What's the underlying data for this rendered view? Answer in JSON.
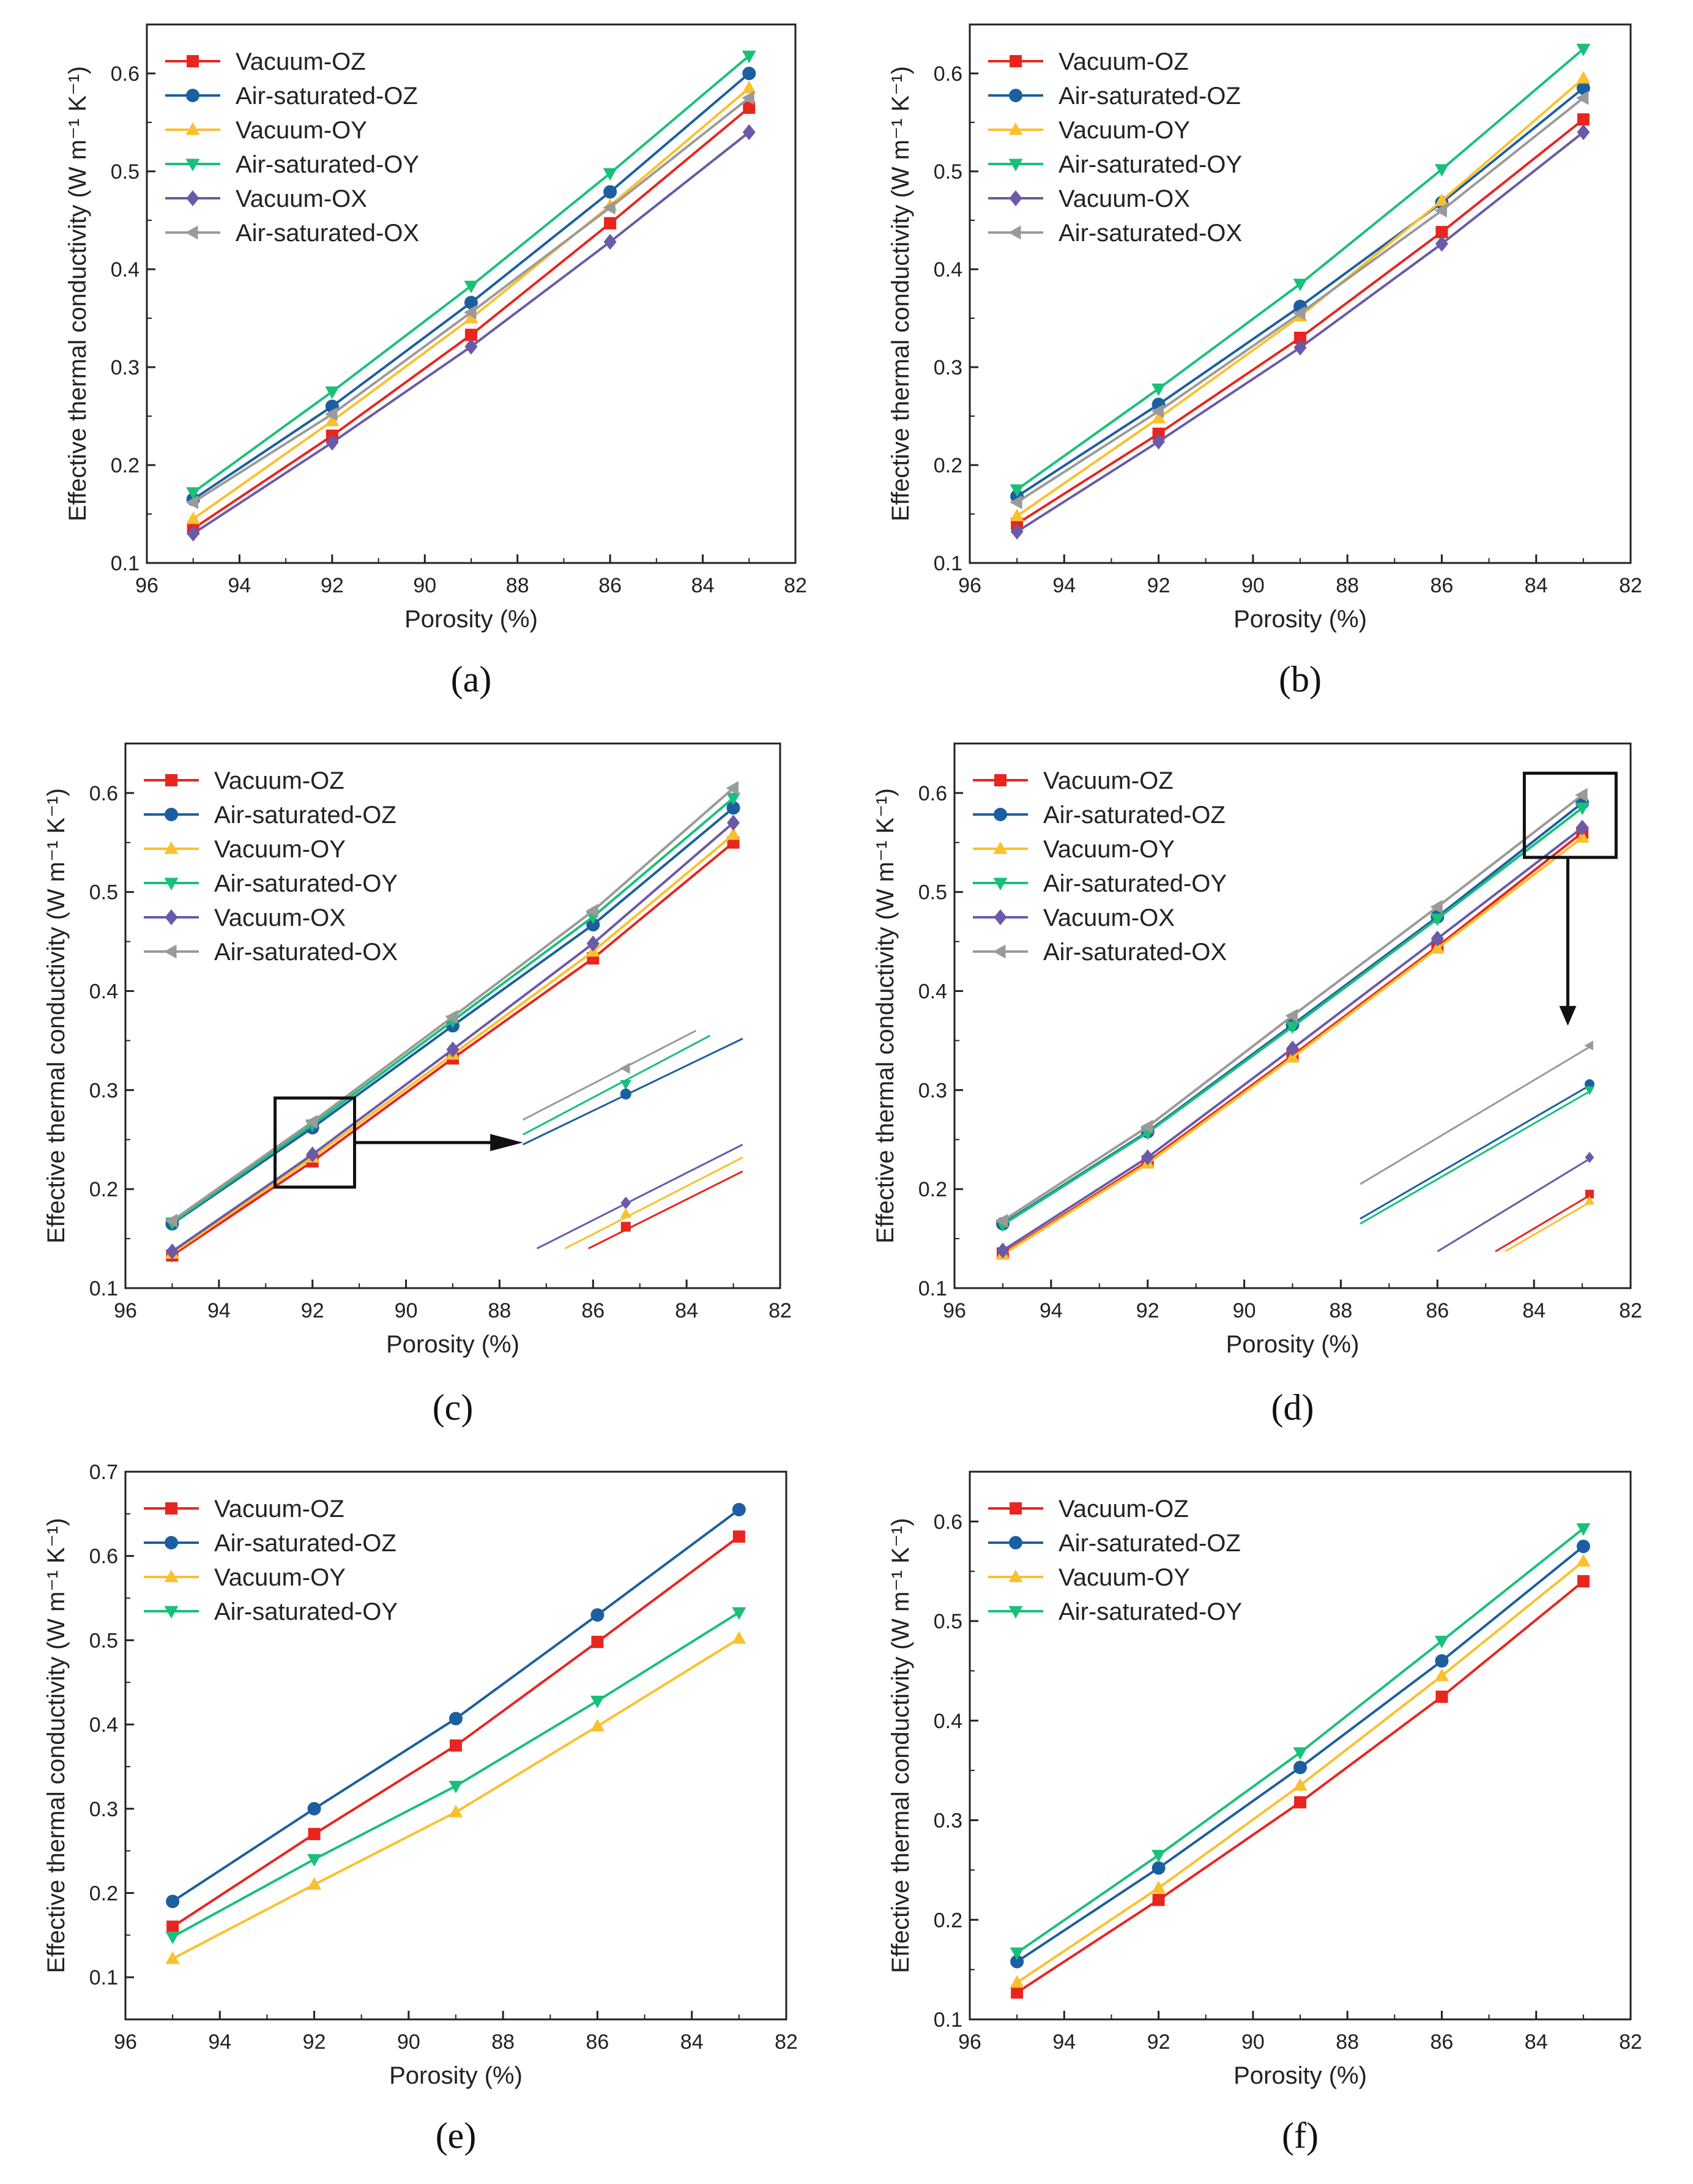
{
  "figure": {
    "colors": {
      "Vacuum-OZ": "#e8251f",
      "Air-saturated-OZ": "#1c5fa0",
      "Vacuum-OY": "#fbc02d",
      "Air-saturated-OY": "#19c07a",
      "Vacuum-OX": "#6a5aa8",
      "Air-saturated-OX": "#9a9a9a"
    },
    "markers": {
      "Vacuum-OZ": "square",
      "Air-saturated-OZ": "circle",
      "Vacuum-OY": "triangle-up",
      "Air-saturated-OY": "triangle-down",
      "Vacuum-OX": "diamond",
      "Air-saturated-OX": "triangle-left"
    }
  },
  "chart_data": [
    {
      "type": "line",
      "panel_label": "(a)",
      "xlabel": "Porosity (%)",
      "ylabel": "Effective thermal conductivity (W m⁻¹ K⁻¹)",
      "xlim": [
        96,
        82
      ],
      "ylim": [
        0.1,
        0.65
      ],
      "xticks": [
        96,
        94,
        92,
        90,
        88,
        86,
        84,
        82
      ],
      "xtick_labels": [
        "96",
        "94",
        "92",
        "90",
        "88",
        "86",
        "84",
        "82"
      ],
      "yticks": [
        0.1,
        0.2,
        0.3,
        0.4,
        0.5,
        0.6
      ],
      "ytick_labels": [
        "0.1",
        "0.2",
        "0.3",
        "0.4",
        "0.5",
        "0.6"
      ],
      "legend_position": "top-left",
      "x": [
        95,
        92,
        89,
        86,
        83
      ],
      "series": [
        {
          "name": "Vacuum-OZ",
          "values": [
            0.135,
            0.23,
            0.333,
            0.447,
            0.565
          ]
        },
        {
          "name": "Air-saturated-OZ",
          "values": [
            0.165,
            0.26,
            0.366,
            0.479,
            0.6
          ]
        },
        {
          "name": "Vacuum-OY",
          "values": [
            0.145,
            0.245,
            0.35,
            0.465,
            0.585
          ]
        },
        {
          "name": "Air-saturated-OY",
          "values": [
            0.172,
            0.275,
            0.383,
            0.498,
            0.618
          ]
        },
        {
          "name": "Vacuum-OX",
          "values": [
            0.13,
            0.223,
            0.321,
            0.428,
            0.54
          ]
        },
        {
          "name": "Air-saturated-OX",
          "values": [
            0.162,
            0.252,
            0.356,
            0.463,
            0.575
          ]
        }
      ]
    },
    {
      "type": "line",
      "panel_label": "(b)",
      "xlabel": "Porosity (%)",
      "ylabel": "Effective thermal conductivity (W m⁻¹ K⁻¹)",
      "xlim": [
        96,
        82
      ],
      "ylim": [
        0.1,
        0.65
      ],
      "xticks": [
        96,
        94,
        92,
        90,
        88,
        86,
        84,
        82
      ],
      "xtick_labels": [
        "96",
        "94",
        "92",
        "90",
        "88",
        "86",
        "84",
        "82"
      ],
      "yticks": [
        0.1,
        0.2,
        0.3,
        0.4,
        0.5,
        0.6
      ],
      "ytick_labels": [
        "0.1",
        "0.2",
        "0.3",
        "0.4",
        "0.5",
        "0.6"
      ],
      "legend_position": "top-left",
      "x": [
        95,
        92,
        89,
        86,
        83
      ],
      "series": [
        {
          "name": "Vacuum-OZ",
          "values": [
            0.14,
            0.232,
            0.33,
            0.438,
            0.553
          ]
        },
        {
          "name": "Air-saturated-OZ",
          "values": [
            0.168,
            0.262,
            0.362,
            0.468,
            0.585
          ]
        },
        {
          "name": "Vacuum-OY",
          "values": [
            0.148,
            0.248,
            0.352,
            0.47,
            0.595
          ]
        },
        {
          "name": "Air-saturated-OY",
          "values": [
            0.175,
            0.278,
            0.385,
            0.502,
            0.625
          ]
        },
        {
          "name": "Vacuum-OX",
          "values": [
            0.132,
            0.224,
            0.32,
            0.426,
            0.54
          ]
        },
        {
          "name": "Air-saturated-OX",
          "values": [
            0.162,
            0.255,
            0.355,
            0.46,
            0.575
          ]
        }
      ]
    },
    {
      "type": "line",
      "panel_label": "(c)",
      "xlabel": "Porosity (%)",
      "ylabel": "Effective thermal conductivity (W m⁻¹ K⁻¹)",
      "xlim": [
        96,
        82
      ],
      "ylim": [
        0.1,
        0.65
      ],
      "xticks": [
        96,
        94,
        92,
        90,
        88,
        86,
        84,
        82
      ],
      "xtick_labels": [
        "96",
        "94",
        "92",
        "90",
        "88",
        "86",
        "84",
        "82"
      ],
      "yticks": [
        0.1,
        0.2,
        0.3,
        0.4,
        0.5,
        0.6
      ],
      "ytick_labels": [
        "0.1",
        "0.2",
        "0.3",
        "0.4",
        "0.5",
        "0.6"
      ],
      "legend_position": "top-left",
      "inset": "zoom box around porosity 92% with magnified view to the right",
      "x": [
        95,
        92,
        89,
        86,
        83
      ],
      "series": [
        {
          "name": "Vacuum-OZ",
          "values": [
            0.133,
            0.228,
            0.332,
            0.433,
            0.55
          ]
        },
        {
          "name": "Air-saturated-OZ",
          "values": [
            0.165,
            0.262,
            0.365,
            0.467,
            0.585
          ]
        },
        {
          "name": "Vacuum-OY",
          "values": [
            0.135,
            0.232,
            0.336,
            0.44,
            0.558
          ]
        },
        {
          "name": "Air-saturated-OY",
          "values": [
            0.166,
            0.265,
            0.37,
            0.475,
            0.595
          ]
        },
        {
          "name": "Vacuum-OX",
          "values": [
            0.137,
            0.235,
            0.341,
            0.448,
            0.57
          ]
        },
        {
          "name": "Air-saturated-OX",
          "values": [
            0.168,
            0.268,
            0.374,
            0.481,
            0.605
          ]
        }
      ]
    },
    {
      "type": "line",
      "panel_label": "(d)",
      "xlabel": "Porosity (%)",
      "ylabel": "Effective thermal conductivity (W m⁻¹ K⁻¹)",
      "xlim": [
        96,
        82
      ],
      "ylim": [
        0.1,
        0.65
      ],
      "xticks": [
        96,
        94,
        92,
        90,
        88,
        86,
        84,
        82
      ],
      "xtick_labels": [
        "96",
        "94",
        "92",
        "90",
        "88",
        "86",
        "84",
        "82"
      ],
      "yticks": [
        0.1,
        0.2,
        0.3,
        0.4,
        0.5,
        0.6
      ],
      "ytick_labels": [
        "0.1",
        "0.2",
        "0.3",
        "0.4",
        "0.5",
        "0.6"
      ],
      "legend_position": "top-left",
      "inset": "zoom box around porosity 83% with magnified view below",
      "x": [
        95,
        92,
        89,
        86,
        83
      ],
      "series": [
        {
          "name": "Vacuum-OZ",
          "values": [
            0.135,
            0.228,
            0.335,
            0.445,
            0.56
          ]
        },
        {
          "name": "Air-saturated-OZ",
          "values": [
            0.165,
            0.258,
            0.366,
            0.475,
            0.59
          ]
        },
        {
          "name": "Vacuum-OY",
          "values": [
            0.134,
            0.226,
            0.333,
            0.443,
            0.555
          ]
        },
        {
          "name": "Air-saturated-OY",
          "values": [
            0.164,
            0.257,
            0.364,
            0.473,
            0.585
          ]
        },
        {
          "name": "Vacuum-OX",
          "values": [
            0.138,
            0.232,
            0.342,
            0.453,
            0.565
          ]
        },
        {
          "name": "Air-saturated-OX",
          "values": [
            0.168,
            0.263,
            0.375,
            0.485,
            0.598
          ]
        }
      ]
    },
    {
      "type": "line",
      "panel_label": "(e)",
      "xlabel": "Porosity (%)",
      "ylabel": "Effective thermal conductivity (W m⁻¹ K⁻¹)",
      "xlim": [
        96,
        82
      ],
      "ylim": [
        0.05,
        0.7
      ],
      "xticks": [
        96,
        94,
        92,
        90,
        88,
        86,
        84,
        82
      ],
      "xtick_labels": [
        "96",
        "94",
        "92",
        "90",
        "88",
        "86",
        "84",
        "82"
      ],
      "yticks": [
        0.1,
        0.2,
        0.3,
        0.4,
        0.5,
        0.6,
        0.7
      ],
      "ytick_labels": [
        "0.1",
        "0.2",
        "0.3",
        "0.4",
        "0.5",
        "0.6",
        "0.7"
      ],
      "legend_position": "top-left",
      "x": [
        95,
        92,
        89,
        86,
        83
      ],
      "series": [
        {
          "name": "Vacuum-OZ",
          "values": [
            0.16,
            0.27,
            0.375,
            0.498,
            0.623
          ]
        },
        {
          "name": "Air-saturated-OZ",
          "values": [
            0.19,
            0.3,
            0.407,
            0.53,
            0.655
          ]
        },
        {
          "name": "Vacuum-OY",
          "values": [
            0.122,
            0.21,
            0.296,
            0.398,
            0.502
          ]
        },
        {
          "name": "Air-saturated-OY",
          "values": [
            0.148,
            0.24,
            0.327,
            0.428,
            0.533
          ]
        }
      ]
    },
    {
      "type": "line",
      "panel_label": "(f)",
      "xlabel": "Porosity (%)",
      "ylabel": "Effective thermal conductivity (W m⁻¹ K⁻¹)",
      "xlim": [
        96,
        82
      ],
      "ylim": [
        0.1,
        0.65
      ],
      "xticks": [
        96,
        94,
        92,
        90,
        88,
        86,
        84,
        82
      ],
      "xtick_labels": [
        "96",
        "94",
        "92",
        "90",
        "88",
        "86",
        "84",
        "82"
      ],
      "yticks": [
        0.1,
        0.2,
        0.3,
        0.4,
        0.5,
        0.6
      ],
      "ytick_labels": [
        "0.1",
        "0.2",
        "0.3",
        "0.4",
        "0.5",
        "0.6"
      ],
      "legend_position": "top-left",
      "x": [
        95,
        92,
        89,
        86,
        83
      ],
      "series": [
        {
          "name": "Vacuum-OZ",
          "values": [
            0.127,
            0.22,
            0.318,
            0.424,
            0.54
          ]
        },
        {
          "name": "Air-saturated-OZ",
          "values": [
            0.158,
            0.252,
            0.353,
            0.46,
            0.575
          ]
        },
        {
          "name": "Vacuum-OY",
          "values": [
            0.137,
            0.232,
            0.335,
            0.445,
            0.56
          ]
        },
        {
          "name": "Air-saturated-OY",
          "values": [
            0.167,
            0.265,
            0.368,
            0.48,
            0.593
          ]
        }
      ]
    }
  ]
}
